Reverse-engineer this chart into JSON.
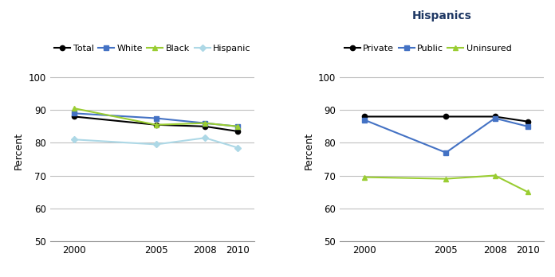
{
  "years": [
    2000,
    2005,
    2008,
    2010
  ],
  "left_chart": {
    "series_order": [
      "Total",
      "White",
      "Black",
      "Hispanic"
    ],
    "series": {
      "Total": [
        88,
        85.5,
        85,
        83.5
      ],
      "White": [
        89,
        87.5,
        86,
        85
      ],
      "Black": [
        90.5,
        85.5,
        86,
        85
      ],
      "Hispanic": [
        81,
        79.5,
        81.5,
        78.5
      ]
    },
    "colors": {
      "Total": "#000000",
      "White": "#4472c4",
      "Black": "#9acd32",
      "Hispanic": "#add8e6"
    },
    "markers": {
      "Total": "o",
      "White": "s",
      "Black": "^",
      "Hispanic": "D"
    },
    "ylabel": "Percent",
    "ylim": [
      50,
      105
    ],
    "yticks": [
      50,
      60,
      70,
      80,
      90,
      100
    ]
  },
  "right_chart": {
    "title": "Hispanics",
    "series_order": [
      "Private",
      "Public",
      "Uninsured"
    ],
    "series": {
      "Private": [
        88,
        88,
        88,
        86.5
      ],
      "Public": [
        87,
        77,
        87.5,
        85
      ],
      "Uninsured": [
        69.5,
        69,
        70,
        65
      ]
    },
    "colors": {
      "Private": "#000000",
      "Public": "#4472c4",
      "Uninsured": "#9acd32"
    },
    "markers": {
      "Private": "o",
      "Public": "s",
      "Uninsured": "^"
    },
    "ylabel": "Percent",
    "ylim": [
      50,
      105
    ],
    "yticks": [
      50,
      60,
      70,
      80,
      90,
      100
    ]
  }
}
